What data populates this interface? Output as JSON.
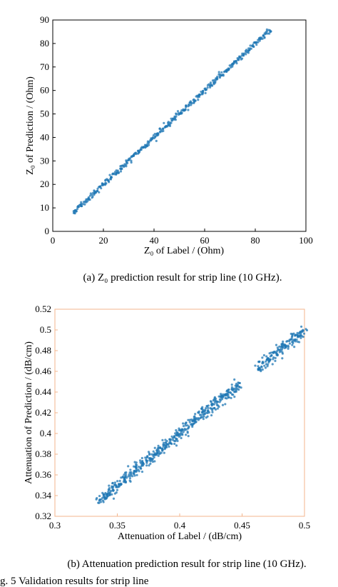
{
  "chart_data": [
    {
      "type": "scatter",
      "title": "",
      "xlabel": "Z₀ of Label / (Ohm)",
      "ylabel": "Z₀ of Prediction / (Ohm)",
      "xlim": [
        0,
        100
      ],
      "ylim": [
        0,
        90
      ],
      "xticks": [
        0,
        20,
        40,
        60,
        80,
        100
      ],
      "yticks": [
        0,
        10,
        20,
        30,
        40,
        50,
        60,
        70,
        80,
        90
      ],
      "grid": false,
      "marker_color": "#1f77b4",
      "series": [
        {
          "x_range": [
            8,
            86
          ],
          "relation": "y = x",
          "spread": 0.6,
          "sampled_points": 420
        }
      ],
      "caption": "(a) Z₀ prediction result for strip line (10 GHz)."
    },
    {
      "type": "scatter",
      "title": "",
      "xlabel": "Attenuation of Label / (dB/cm)",
      "ylabel": "Attenuation of Prediction / (dB/cm)",
      "xlim": [
        0.3,
        0.5
      ],
      "ylim": [
        0.32,
        0.52
      ],
      "xticks": [
        "0.3",
        "0.35",
        "0.4",
        "0.45",
        "0.5"
      ],
      "yticks": [
        "0.32",
        "0.34",
        "0.36",
        "0.38",
        "0.4",
        "0.42",
        "0.44",
        "0.46",
        "0.48",
        "0.5",
        "0.52"
      ],
      "grid": false,
      "marker_color": "#1f77b4",
      "series": [
        {
          "x_range": [
            0.335,
            0.5
          ],
          "relation": "y = x",
          "spread": 0.003,
          "gap": [
            0.448,
            0.462
          ],
          "sampled_points": 700
        }
      ],
      "caption": "(b) Attenuation prediction result for strip line (10 GHz)."
    }
  ],
  "footer_text": "g. 5   Validation results for strip line"
}
